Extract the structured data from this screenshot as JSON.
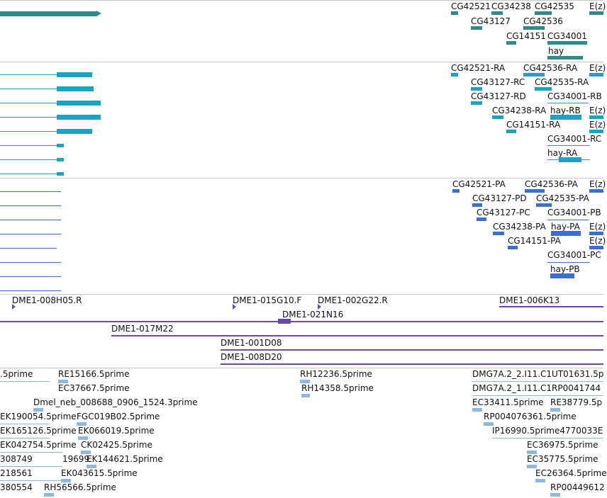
{
  "colors": {
    "gene": "#2e8b8b",
    "transcript": "#1ba3c6",
    "protein": "#3a6fd0",
    "clone": "#6a4aa8",
    "est": "#8fb9dc",
    "divider": "#c8c8c8"
  },
  "tracks": {
    "genes": {
      "labels": [
        "CG42521",
        "CG34238",
        "CG42535",
        "E(z)",
        "CG43127",
        "CG42536",
        "CG14151",
        "CG34001",
        "hay"
      ]
    },
    "transcripts": {
      "labels": [
        "CG42521-RA",
        "CG42536-RA",
        "E(z)",
        "CG43127-RC",
        "CG42535-RA",
        "CG43127-RD",
        "CG34001-RB",
        "CG34238-RA",
        "hay-RB",
        "E(z)",
        "CG14151-RA",
        "E(z)",
        "CG34001-RC",
        "hay-RA"
      ]
    },
    "proteins": {
      "labels": [
        "CG42521-PA",
        "CG42536-PA",
        "E(z)",
        "CG43127-PD",
        "CG42535-PA",
        "CG43127-PC",
        "CG34001-PB",
        "CG34238-PA",
        "hay-PA",
        "E(z)",
        "CG14151-PA",
        "E(z)",
        "CG34001-PC",
        "hay-PB"
      ]
    },
    "clones": {
      "labels": [
        "DME1-008H05.R",
        "DME1-015G10.F",
        "DME1-002G22.R",
        "DME1-006K13",
        "DME1-021N16",
        "DME1-017M22",
        "DME1-001D08",
        "DME1-008D20"
      ]
    },
    "ests": {
      "labels": [
        ".5prime",
        "RE15166.5prime",
        "RH12236.5prime",
        "DMG7A.2_2.I11.C1UT01631.5p",
        "EC37667.5prime",
        "RH14358.5prime",
        "DMG7A.2_1.I11.C1RP0041744",
        "Dmel_neb_008688_0906_1524.3prime",
        "EC33411.5prime",
        "RE38779.5p",
        "EK190054.5prime",
        "FGC019B02.5prime",
        "RP004076361.5prime",
        "EK165126.5prime",
        "EK066019.5prime",
        "IP16990.5prime4770033E",
        "EK042754.5prime",
        "CK02425.5prime",
        "EC36975.5prime",
        "308749",
        "19699",
        "EK144621.5prime",
        "EC35775.5prime",
        "218561",
        "EK043615.5prime",
        "EC26364.5prime",
        "380554",
        "RH56566.5prime",
        "RP00449612"
      ]
    }
  }
}
